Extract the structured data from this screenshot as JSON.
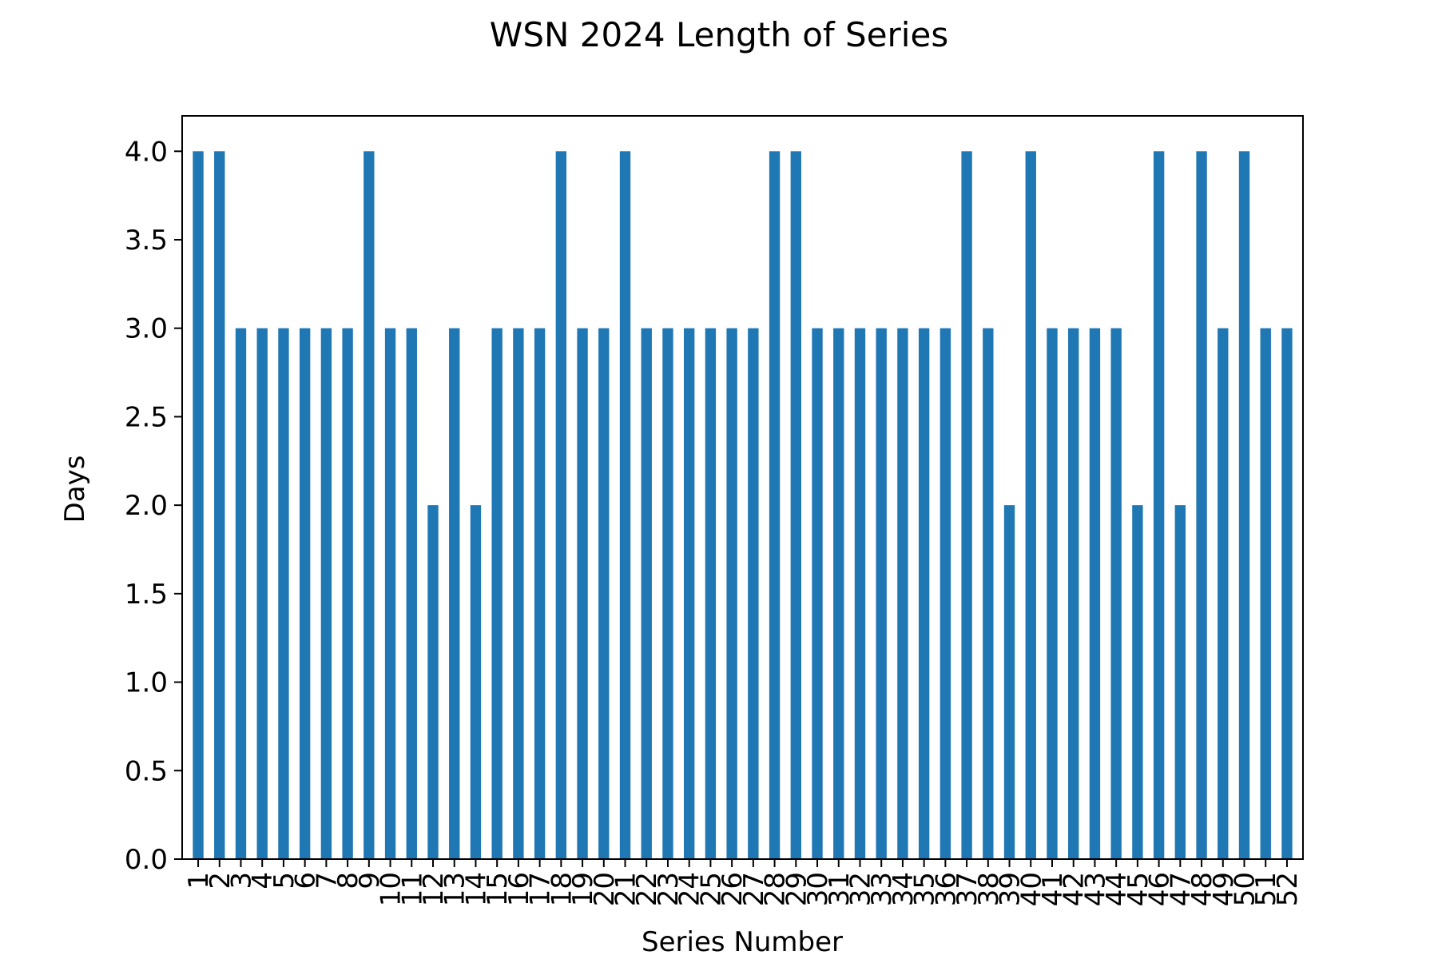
{
  "chart_data": {
    "type": "bar",
    "title": "WSN 2024 Length of Series",
    "xlabel": "Series Number",
    "ylabel": "Days",
    "categories": [
      "1",
      "2",
      "3",
      "4",
      "5",
      "6",
      "7",
      "8",
      "9",
      "10",
      "11",
      "12",
      "13",
      "14",
      "15",
      "16",
      "17",
      "18",
      "19",
      "20",
      "21",
      "22",
      "23",
      "24",
      "25",
      "26",
      "27",
      "28",
      "29",
      "30",
      "31",
      "32",
      "33",
      "34",
      "35",
      "36",
      "37",
      "38",
      "39",
      "40",
      "41",
      "42",
      "43",
      "44",
      "45",
      "46",
      "47",
      "48",
      "49",
      "50",
      "51",
      "52"
    ],
    "values": [
      4,
      4,
      3,
      3,
      3,
      3,
      3,
      3,
      4,
      3,
      3,
      2,
      3,
      2,
      3,
      3,
      3,
      4,
      3,
      3,
      4,
      3,
      3,
      3,
      3,
      3,
      3,
      4,
      4,
      3,
      3,
      3,
      3,
      3,
      3,
      3,
      4,
      3,
      2,
      4,
      3,
      3,
      3,
      3,
      2,
      4,
      2,
      4,
      3,
      4,
      3,
      3
    ],
    "ylim": [
      0,
      4.2
    ],
    "yticks": [
      "0.0",
      "0.5",
      "1.0",
      "1.5",
      "2.0",
      "2.5",
      "3.0",
      "3.5",
      "4.0"
    ],
    "grid": false,
    "legend": "none",
    "bar_color": "#1f77b4"
  }
}
